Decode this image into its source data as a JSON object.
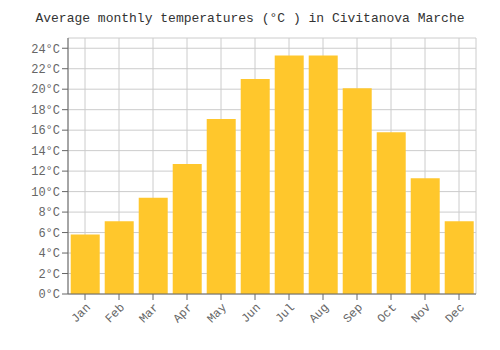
{
  "chart_data": {
    "type": "bar",
    "title": "Average monthly temperatures (°C ) in Civitanova Marche",
    "categories": [
      "Jan",
      "Feb",
      "Mar",
      "Apr",
      "May",
      "Jun",
      "Jul",
      "Aug",
      "Sep",
      "Oct",
      "Nov",
      "Dec"
    ],
    "values": [
      5.8,
      7.1,
      9.4,
      12.7,
      17.1,
      21.0,
      23.3,
      23.3,
      20.1,
      15.8,
      11.3,
      7.1
    ],
    "color": "#FFC72C",
    "ylim": [
      0,
      25
    ],
    "yticks": [
      {
        "value": 0,
        "label": "0°C"
      },
      {
        "value": 2,
        "label": "2°C"
      },
      {
        "value": 4,
        "label": "4°C"
      },
      {
        "value": 6,
        "label": "6°C"
      },
      {
        "value": 8,
        "label": "8°C"
      },
      {
        "value": 10,
        "label": "10°C"
      },
      {
        "value": 12,
        "label": "12°C"
      },
      {
        "value": 14,
        "label": "14°C"
      },
      {
        "value": 16,
        "label": "16°C"
      },
      {
        "value": 18,
        "label": "18°C"
      },
      {
        "value": 20,
        "label": "20°C"
      },
      {
        "value": 22,
        "label": "22°C"
      },
      {
        "value": 24,
        "label": "24°C"
      }
    ],
    "grid": true
  }
}
